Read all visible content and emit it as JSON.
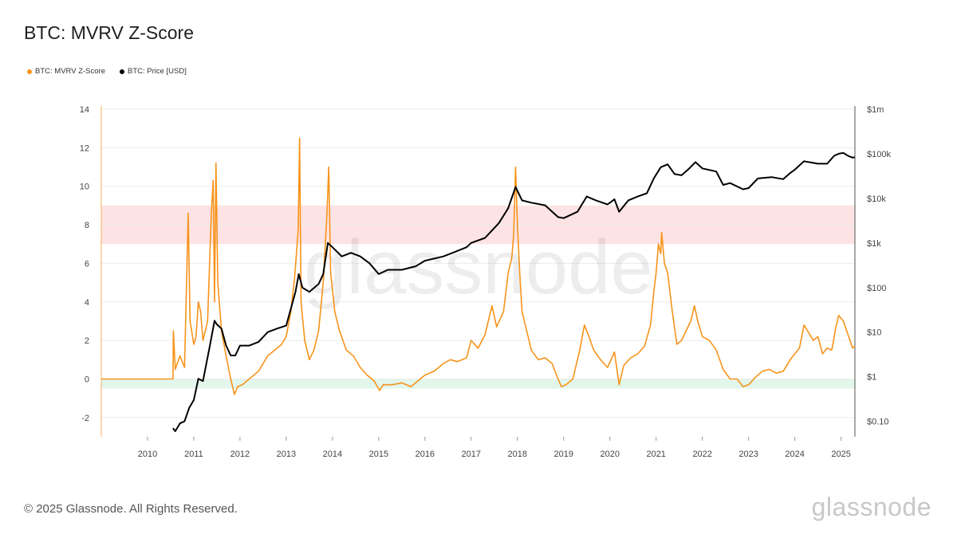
{
  "title": "BTC: MVRV Z-Score",
  "footer": "© 2025 Glassnode. All Rights Reserved.",
  "brand": "glassnode",
  "watermark": "glassnode",
  "colors": {
    "zscore": "#f7931a",
    "price": "#000000",
    "red_band": "#fde3e3",
    "green_band": "#e2f6ec",
    "grid": "#ececec"
  },
  "legend": [
    {
      "label": "BTC: MVRV Z-Score",
      "color": "#f7931a"
    },
    {
      "label": "BTC: Price [USD]",
      "color": "#000000"
    }
  ],
  "chart_data": {
    "type": "line",
    "title": "BTC: MVRV Z-Score",
    "x_ticks": [
      "2010",
      "2011",
      "2012",
      "2013",
      "2014",
      "2015",
      "2016",
      "2017",
      "2018",
      "2019",
      "2020",
      "2021",
      "2022",
      "2023",
      "2024",
      "2025"
    ],
    "x_range": [
      2009.0,
      2025.3
    ],
    "left_axis": {
      "ticks": [
        -2,
        0,
        2,
        4,
        6,
        8,
        10,
        12,
        14
      ],
      "tick_labels": [
        "-2",
        "0",
        "2",
        "4",
        "6",
        "8",
        "10",
        "12",
        "14"
      ],
      "range": [
        -3,
        14
      ]
    },
    "right_axis": {
      "scale": "log",
      "ticks": [
        0.1,
        1,
        10,
        100,
        1000,
        10000,
        100000,
        1000000
      ],
      "tick_labels": [
        "$0.10",
        "$1",
        "$10",
        "$100",
        "$1k",
        "$10k",
        "$100k",
        "$1m"
      ],
      "range": [
        0.045,
        1000000
      ]
    },
    "bands": [
      {
        "axis": "left",
        "from": 7,
        "to": 9,
        "color": "#fde3e3"
      },
      {
        "axis": "left",
        "from": -0.5,
        "to": 0,
        "color": "#e2f6ec"
      }
    ],
    "grid": true,
    "legend_position": "top-left",
    "series": [
      {
        "name": "BTC: MVRV Z-Score",
        "axis": "left",
        "color": "#f7931a",
        "points": [
          [
            2009.0,
            0
          ],
          [
            2010.55,
            0
          ],
          [
            2010.56,
            2.5
          ],
          [
            2010.6,
            0.5
          ],
          [
            2010.7,
            1.2
          ],
          [
            2010.8,
            0.6
          ],
          [
            2010.88,
            8.6
          ],
          [
            2010.92,
            3.0
          ],
          [
            2011.0,
            1.8
          ],
          [
            2011.05,
            2.2
          ],
          [
            2011.1,
            4.0
          ],
          [
            2011.15,
            3.5
          ],
          [
            2011.2,
            2.0
          ],
          [
            2011.3,
            3.0
          ],
          [
            2011.38,
            8.6
          ],
          [
            2011.42,
            10.3
          ],
          [
            2011.45,
            4.0
          ],
          [
            2011.48,
            11.2
          ],
          [
            2011.52,
            5.0
          ],
          [
            2011.6,
            2.5
          ],
          [
            2011.7,
            1.2
          ],
          [
            2011.8,
            0.0
          ],
          [
            2011.88,
            -0.8
          ],
          [
            2011.95,
            -0.4
          ],
          [
            2012.05,
            -0.3
          ],
          [
            2012.2,
            0.0
          ],
          [
            2012.4,
            0.4
          ],
          [
            2012.6,
            1.2
          ],
          [
            2012.75,
            1.5
          ],
          [
            2012.9,
            1.8
          ],
          [
            2013.0,
            2.2
          ],
          [
            2013.1,
            3.5
          ],
          [
            2013.18,
            5.2
          ],
          [
            2013.22,
            6.5
          ],
          [
            2013.26,
            7.8
          ],
          [
            2013.29,
            12.5
          ],
          [
            2013.32,
            4.0
          ],
          [
            2013.4,
            2.0
          ],
          [
            2013.5,
            1.0
          ],
          [
            2013.6,
            1.5
          ],
          [
            2013.7,
            2.5
          ],
          [
            2013.8,
            5.0
          ],
          [
            2013.88,
            8.5
          ],
          [
            2013.92,
            11.0
          ],
          [
            2013.96,
            5.5
          ],
          [
            2014.05,
            3.5
          ],
          [
            2014.15,
            2.5
          ],
          [
            2014.3,
            1.5
          ],
          [
            2014.45,
            1.2
          ],
          [
            2014.6,
            0.6
          ],
          [
            2014.75,
            0.2
          ],
          [
            2014.9,
            -0.1
          ],
          [
            2015.02,
            -0.6
          ],
          [
            2015.1,
            -0.3
          ],
          [
            2015.3,
            -0.3
          ],
          [
            2015.5,
            -0.2
          ],
          [
            2015.7,
            -0.4
          ],
          [
            2015.85,
            -0.1
          ],
          [
            2016.0,
            0.2
          ],
          [
            2016.2,
            0.4
          ],
          [
            2016.4,
            0.8
          ],
          [
            2016.55,
            1.0
          ],
          [
            2016.7,
            0.9
          ],
          [
            2016.9,
            1.1
          ],
          [
            2017.0,
            2.0
          ],
          [
            2017.15,
            1.6
          ],
          [
            2017.3,
            2.3
          ],
          [
            2017.45,
            3.8
          ],
          [
            2017.55,
            2.7
          ],
          [
            2017.7,
            3.5
          ],
          [
            2017.8,
            5.5
          ],
          [
            2017.88,
            6.3
          ],
          [
            2017.92,
            7.5
          ],
          [
            2017.96,
            11.0
          ],
          [
            2018.0,
            8.0
          ],
          [
            2018.05,
            5.5
          ],
          [
            2018.1,
            3.5
          ],
          [
            2018.2,
            2.5
          ],
          [
            2018.3,
            1.5
          ],
          [
            2018.45,
            1.0
          ],
          [
            2018.6,
            1.1
          ],
          [
            2018.75,
            0.8
          ],
          [
            2018.88,
            0.0
          ],
          [
            2018.95,
            -0.4
          ],
          [
            2019.05,
            -0.3
          ],
          [
            2019.2,
            0.0
          ],
          [
            2019.35,
            1.5
          ],
          [
            2019.45,
            2.8
          ],
          [
            2019.55,
            2.2
          ],
          [
            2019.65,
            1.5
          ],
          [
            2019.8,
            1.0
          ],
          [
            2019.95,
            0.6
          ],
          [
            2020.1,
            1.4
          ],
          [
            2020.2,
            -0.3
          ],
          [
            2020.3,
            0.7
          ],
          [
            2020.45,
            1.1
          ],
          [
            2020.6,
            1.3
          ],
          [
            2020.75,
            1.7
          ],
          [
            2020.88,
            2.8
          ],
          [
            2020.95,
            4.5
          ],
          [
            2021.0,
            5.5
          ],
          [
            2021.05,
            7.0
          ],
          [
            2021.1,
            6.5
          ],
          [
            2021.12,
            7.6
          ],
          [
            2021.18,
            6.0
          ],
          [
            2021.25,
            5.5
          ],
          [
            2021.35,
            3.5
          ],
          [
            2021.45,
            1.8
          ],
          [
            2021.55,
            2.0
          ],
          [
            2021.65,
            2.5
          ],
          [
            2021.75,
            3.0
          ],
          [
            2021.83,
            3.8
          ],
          [
            2021.9,
            3.0
          ],
          [
            2022.0,
            2.2
          ],
          [
            2022.15,
            2.0
          ],
          [
            2022.3,
            1.5
          ],
          [
            2022.45,
            0.5
          ],
          [
            2022.6,
            0.0
          ],
          [
            2022.75,
            0.0
          ],
          [
            2022.88,
            -0.4
          ],
          [
            2023.0,
            -0.3
          ],
          [
            2023.15,
            0.1
          ],
          [
            2023.3,
            0.4
          ],
          [
            2023.45,
            0.5
          ],
          [
            2023.6,
            0.3
          ],
          [
            2023.75,
            0.4
          ],
          [
            2023.9,
            1.0
          ],
          [
            2024.0,
            1.3
          ],
          [
            2024.1,
            1.6
          ],
          [
            2024.2,
            2.8
          ],
          [
            2024.3,
            2.4
          ],
          [
            2024.4,
            2.0
          ],
          [
            2024.5,
            2.2
          ],
          [
            2024.6,
            1.3
          ],
          [
            2024.7,
            1.6
          ],
          [
            2024.8,
            1.5
          ],
          [
            2024.88,
            2.6
          ],
          [
            2024.95,
            3.3
          ],
          [
            2025.05,
            3.0
          ],
          [
            2025.15,
            2.3
          ],
          [
            2025.25,
            1.6
          ],
          [
            2025.3,
            1.7
          ]
        ]
      },
      {
        "name": "BTC: Price [USD]",
        "axis": "right",
        "color": "#000000",
        "points": [
          [
            2010.55,
            0.07
          ],
          [
            2010.6,
            0.06
          ],
          [
            2010.7,
            0.09
          ],
          [
            2010.8,
            0.1
          ],
          [
            2010.9,
            0.2
          ],
          [
            2011.0,
            0.3
          ],
          [
            2011.1,
            0.9
          ],
          [
            2011.2,
            0.8
          ],
          [
            2011.35,
            5
          ],
          [
            2011.45,
            18
          ],
          [
            2011.5,
            15
          ],
          [
            2011.6,
            12
          ],
          [
            2011.7,
            5
          ],
          [
            2011.8,
            3
          ],
          [
            2011.9,
            3
          ],
          [
            2012.0,
            5
          ],
          [
            2012.2,
            5
          ],
          [
            2012.4,
            6
          ],
          [
            2012.6,
            10
          ],
          [
            2012.8,
            12
          ],
          [
            2013.0,
            14
          ],
          [
            2013.2,
            80
          ],
          [
            2013.27,
            200
          ],
          [
            2013.35,
            100
          ],
          [
            2013.5,
            80
          ],
          [
            2013.7,
            120
          ],
          [
            2013.8,
            200
          ],
          [
            2013.9,
            1000
          ],
          [
            2014.0,
            800
          ],
          [
            2014.2,
            500
          ],
          [
            2014.4,
            600
          ],
          [
            2014.6,
            500
          ],
          [
            2014.8,
            350
          ],
          [
            2015.0,
            200
          ],
          [
            2015.2,
            250
          ],
          [
            2015.5,
            250
          ],
          [
            2015.8,
            300
          ],
          [
            2016.0,
            400
          ],
          [
            2016.4,
            500
          ],
          [
            2016.6,
            600
          ],
          [
            2016.9,
            800
          ],
          [
            2017.0,
            1000
          ],
          [
            2017.3,
            1300
          ],
          [
            2017.6,
            2800
          ],
          [
            2017.8,
            6000
          ],
          [
            2017.96,
            18000
          ],
          [
            2018.1,
            9000
          ],
          [
            2018.3,
            8000
          ],
          [
            2018.6,
            7000
          ],
          [
            2018.88,
            3800
          ],
          [
            2019.0,
            3600
          ],
          [
            2019.3,
            5000
          ],
          [
            2019.5,
            11000
          ],
          [
            2019.7,
            9000
          ],
          [
            2019.95,
            7300
          ],
          [
            2020.1,
            9500
          ],
          [
            2020.2,
            5000
          ],
          [
            2020.4,
            9000
          ],
          [
            2020.6,
            11000
          ],
          [
            2020.8,
            13000
          ],
          [
            2020.95,
            28000
          ],
          [
            2021.1,
            50000
          ],
          [
            2021.25,
            58000
          ],
          [
            2021.4,
            35000
          ],
          [
            2021.55,
            33000
          ],
          [
            2021.7,
            45000
          ],
          [
            2021.85,
            65000
          ],
          [
            2022.0,
            47000
          ],
          [
            2022.3,
            40000
          ],
          [
            2022.45,
            20000
          ],
          [
            2022.6,
            22000
          ],
          [
            2022.88,
            16000
          ],
          [
            2023.0,
            17000
          ],
          [
            2023.2,
            28000
          ],
          [
            2023.5,
            30000
          ],
          [
            2023.75,
            27000
          ],
          [
            2023.9,
            37000
          ],
          [
            2024.0,
            44000
          ],
          [
            2024.2,
            68000
          ],
          [
            2024.5,
            60000
          ],
          [
            2024.7,
            60000
          ],
          [
            2024.85,
            90000
          ],
          [
            2024.95,
            100000
          ],
          [
            2025.05,
            105000
          ],
          [
            2025.15,
            90000
          ],
          [
            2025.25,
            82000
          ],
          [
            2025.3,
            84000
          ]
        ]
      }
    ]
  }
}
